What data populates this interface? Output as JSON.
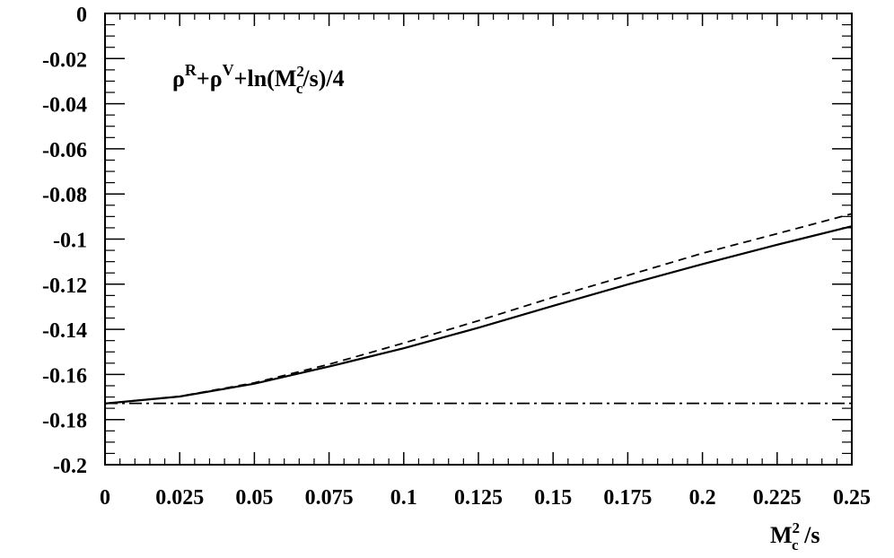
{
  "chart_data": {
    "type": "line",
    "title": "",
    "xlim": [
      0,
      0.25
    ],
    "ylim": [
      -0.2,
      0
    ],
    "grid": false,
    "legend": "none",
    "x_ticks": [
      0,
      0.025,
      0.05,
      0.075,
      0.1,
      0.125,
      0.15,
      0.175,
      0.2,
      0.225,
      0.25
    ],
    "x_tick_labels": [
      "0",
      "0.025",
      "0.05",
      "0.075",
      "0.1",
      "0.125",
      "0.15",
      "0.175",
      "0.2",
      "0.225",
      "0.25"
    ],
    "y_ticks": [
      0,
      -0.02,
      -0.04,
      -0.06,
      -0.08,
      -0.1,
      -0.12,
      -0.14,
      -0.16,
      -0.18,
      -0.2
    ],
    "y_tick_labels": [
      "0",
      "-0.02",
      "-0.04",
      "-0.06",
      "-0.08",
      "-0.1",
      "-0.12",
      "-0.14",
      "-0.16",
      "-0.18",
      "-0.2"
    ],
    "xlabel": {
      "base": "M",
      "sup": "2",
      "sub": "c",
      "tail": " /s"
    },
    "annotation": {
      "p1": "ρ",
      "p1_sup": "R",
      "p2": "+ρ",
      "p2_sup": "V",
      "p3": "+ln(M",
      "p3_sup": "2",
      "p3_sub": "c",
      "p4": "/s)/4"
    },
    "series": [
      {
        "style": "solid",
        "x": [
          0,
          0.025,
          0.05,
          0.075,
          0.1,
          0.125,
          0.15,
          0.175,
          0.2,
          0.225,
          0.25
        ],
        "y": [
          -0.1729,
          -0.1698,
          -0.1641,
          -0.1565,
          -0.1484,
          -0.1393,
          -0.1296,
          -0.1201,
          -0.1111,
          -0.1025,
          -0.0943
        ]
      },
      {
        "style": "dashed",
        "x": [
          0,
          0.025,
          0.05,
          0.075,
          0.1,
          0.125,
          0.15,
          0.175,
          0.2,
          0.225,
          0.25
        ],
        "y": [
          -0.1729,
          -0.1697,
          -0.1637,
          -0.1555,
          -0.1461,
          -0.1362,
          -0.1258,
          -0.1161,
          -0.1063,
          -0.0976,
          -0.0888
        ]
      },
      {
        "style": "dashdot",
        "x": [
          0,
          0.25
        ],
        "y": [
          -0.1728,
          -0.1728
        ]
      }
    ]
  }
}
